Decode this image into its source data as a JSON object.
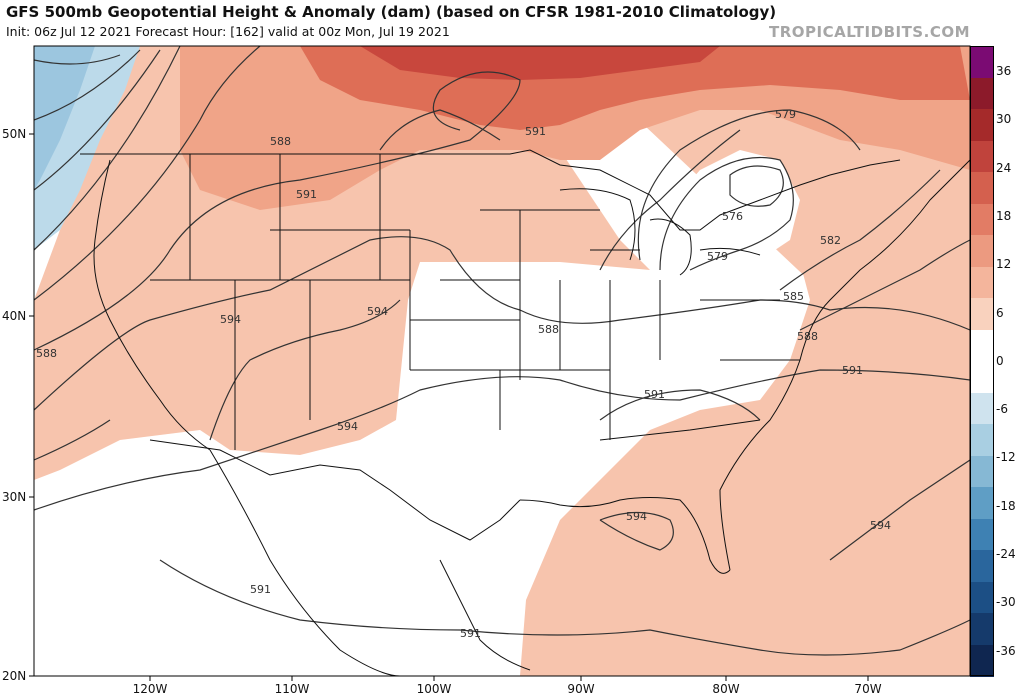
{
  "title": "GFS 500mb Geopotential Height & Anomaly (dam) (based on CFSR 1981-2010 Climatology)",
  "subtitle": "Init: 06z Jul 12 2021   Forecast Hour: [162]   valid at 00z Mon, Jul 19 2021",
  "watermark": "TROPICALTIDBITS.COM",
  "lat_labels": [
    "50N",
    "40N",
    "30N",
    "20N"
  ],
  "lon_labels": [
    "120W",
    "110W",
    "100W",
    "90W",
    "80W",
    "70W"
  ],
  "colorbar": {
    "labels": [
      "36",
      "30",
      "24",
      "18",
      "12",
      "6",
      "0",
      "-6",
      "-12",
      "-18",
      "-24",
      "-30",
      "-36"
    ],
    "colors": [
      "#7b0b73",
      "#8c1a2a",
      "#a52a2a",
      "#c0433c",
      "#d4604e",
      "#e27c65",
      "#ec9a80",
      "#f4b59c",
      "#f9d2be",
      "#ffffff",
      "#ffffff",
      "#cfe3ee",
      "#a9cfe2",
      "#86b8d4",
      "#5f9ec5",
      "#3e81b3",
      "#2a669d",
      "#1c4f85",
      "#153a6b",
      "#0f2650"
    ]
  },
  "contour_labels": [
    "579",
    "588",
    "591",
    "594",
    "585",
    "576",
    "582"
  ],
  "colors": {
    "positive_light": "#f7c4ad",
    "positive_mid": "#f0a488",
    "positive_strong": "#de6e56",
    "positive_deep": "#c8473d",
    "negative_light": "#bcdaea",
    "negative_mid": "#9cc6df",
    "contour": "#333333",
    "boundary": "#111111"
  }
}
